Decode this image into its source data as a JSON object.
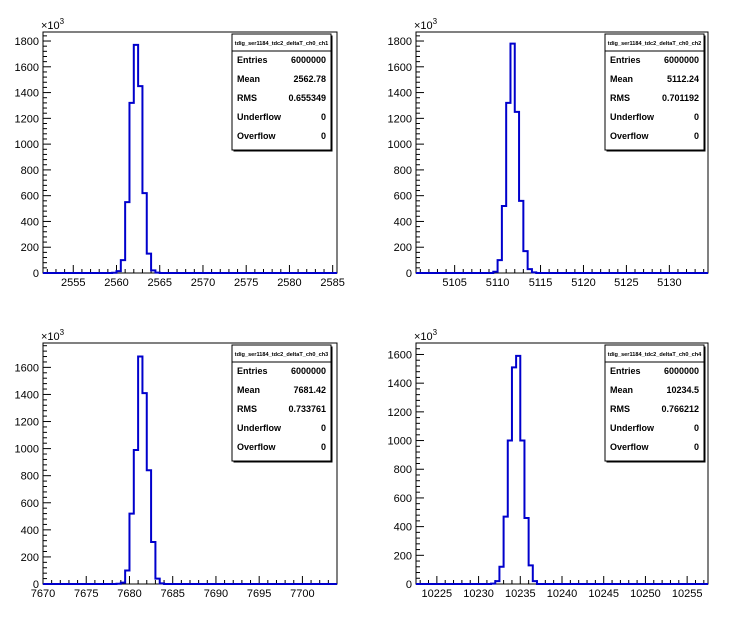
{
  "style": {
    "line_color": "#0000cc",
    "axis_color": "#000000",
    "background": "#ffffff"
  },
  "chart_data": [
    {
      "type": "histogram",
      "title": "tdig_ser1184_tdc2_deltaT_ch0_ch1",
      "multiplier_label": "×10",
      "multiplier_exp": "3",
      "xlim": [
        2551.5,
        2585.5
      ],
      "ylim": [
        0,
        1870
      ],
      "xticks": [
        2555,
        2560,
        2565,
        2570,
        2575,
        2580,
        2585
      ],
      "yticks": [
        0,
        200,
        400,
        600,
        800,
        1000,
        1200,
        1400,
        1600,
        1800
      ],
      "bin_width": 0.5,
      "bin_starts": [
        2559.0,
        2559.5,
        2560.0,
        2560.5,
        2561.0,
        2561.5,
        2562.0,
        2562.5,
        2563.0,
        2563.5,
        2564.0,
        2564.5,
        2565.0,
        2565.5
      ],
      "values": [
        0,
        2,
        15,
        100,
        550,
        1320,
        1770,
        1450,
        620,
        150,
        20,
        3,
        0,
        0
      ],
      "stats": [
        {
          "label": "Entries",
          "value": "6000000"
        },
        {
          "label": "Mean",
          "value": "2562.78"
        },
        {
          "label": "RMS",
          "value": "0.655349"
        },
        {
          "label": "Underflow",
          "value": "0"
        },
        {
          "label": "Overflow",
          "value": "0"
        }
      ]
    },
    {
      "type": "histogram",
      "title": "tdig_ser1184_tdc2_deltaT_ch0_ch2",
      "multiplier_label": "×10",
      "multiplier_exp": "3",
      "xlim": [
        5100.5,
        5134.5
      ],
      "ylim": [
        0,
        1870
      ],
      "xticks": [
        5105,
        5110,
        5115,
        5120,
        5125,
        5130
      ],
      "yticks": [
        0,
        200,
        400,
        600,
        800,
        1000,
        1200,
        1400,
        1600,
        1800
      ],
      "bin_width": 0.5,
      "bin_starts": [
        5109.0,
        5109.5,
        5110.0,
        5110.5,
        5111.0,
        5111.5,
        5112.0,
        5112.5,
        5113.0,
        5113.5,
        5114.0,
        5114.5
      ],
      "values": [
        0,
        10,
        100,
        520,
        1320,
        1780,
        1250,
        560,
        170,
        30,
        5,
        0
      ],
      "stats": [
        {
          "label": "Entries",
          "value": "6000000"
        },
        {
          "label": "Mean",
          "value": "5112.24"
        },
        {
          "label": "RMS",
          "value": "0.701192"
        },
        {
          "label": "Underflow",
          "value": "0"
        },
        {
          "label": "Overflow",
          "value": "0"
        }
      ]
    },
    {
      "type": "histogram",
      "title": "tdig_ser1184_tdc2_deltaT_ch0_ch3",
      "multiplier_label": "×10",
      "multiplier_exp": "3",
      "xlim": [
        7670,
        7704
      ],
      "ylim": [
        0,
        1780
      ],
      "xticks": [
        7670,
        7675,
        7680,
        7685,
        7690,
        7695,
        7700
      ],
      "yticks": [
        0,
        200,
        400,
        600,
        800,
        1000,
        1200,
        1400,
        1600
      ],
      "bin_width": 0.5,
      "bin_starts": [
        7678.5,
        7679.0,
        7679.5,
        7680.0,
        7680.5,
        7681.0,
        7681.5,
        7682.0,
        7682.5,
        7683.0,
        7683.5,
        7684.0
      ],
      "values": [
        2,
        10,
        100,
        520,
        990,
        1680,
        1410,
        840,
        310,
        40,
        5,
        0
      ],
      "stats": [
        {
          "label": "Entries",
          "value": "6000000"
        },
        {
          "label": "Mean",
          "value": "7681.42"
        },
        {
          "label": "RMS",
          "value": "0.733761"
        },
        {
          "label": "Underflow",
          "value": "0"
        },
        {
          "label": "Overflow",
          "value": "0"
        }
      ]
    },
    {
      "type": "histogram",
      "title": "tdig_ser1184_tdc2_deltaT_ch0_ch4",
      "multiplier_label": "×10",
      "multiplier_exp": "3",
      "xlim": [
        10222.5,
        10257.5
      ],
      "ylim": [
        0,
        1680
      ],
      "xticks": [
        10225,
        10230,
        10235,
        10240,
        10245,
        10250,
        10255
      ],
      "yticks": [
        0,
        200,
        400,
        600,
        800,
        1000,
        1200,
        1400,
        1600
      ],
      "bin_width": 0.5,
      "bin_starts": [
        10231.5,
        10232.0,
        10232.5,
        10233.0,
        10233.5,
        10234.0,
        10234.5,
        10235.0,
        10235.5,
        10236.0,
        10236.5,
        10237.0
      ],
      "values": [
        3,
        20,
        120,
        470,
        1000,
        1510,
        1590,
        1000,
        460,
        130,
        20,
        0
      ],
      "stats": [
        {
          "label": "Entries",
          "value": "6000000"
        },
        {
          "label": "Mean",
          "value": "10234.5"
        },
        {
          "label": "RMS",
          "value": "0.766212"
        },
        {
          "label": "Underflow",
          "value": "0"
        },
        {
          "label": "Overflow",
          "value": "0"
        }
      ]
    }
  ]
}
